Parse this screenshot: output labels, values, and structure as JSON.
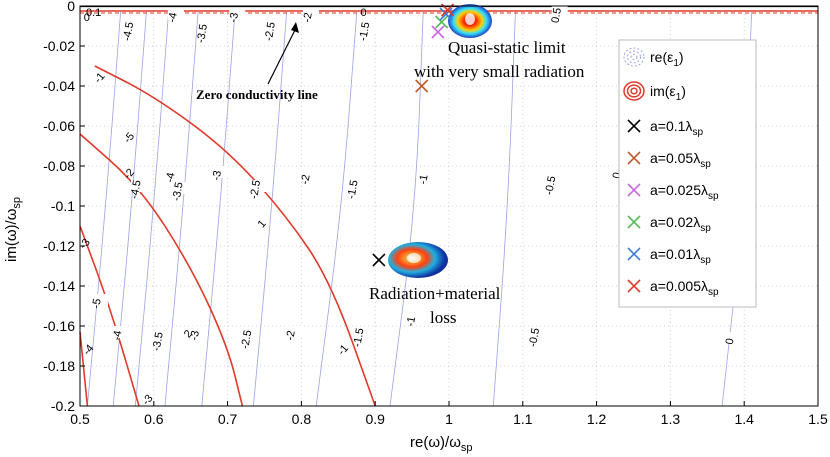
{
  "chart_data": {
    "type": "line",
    "xlabel": "re(ω)/ω",
    "xlabel_sub": "sp",
    "ylabel": "im(ω)/ω",
    "ylabel_sub": "sp",
    "xlim": [
      0.5,
      1.5
    ],
    "ylim": [
      -0.2,
      0
    ],
    "x_ticks": [
      "0.5",
      "0.6",
      "0.7",
      "0.8",
      "0.9",
      "1",
      "1.1",
      "1.2",
      "1.3",
      "1.4",
      "1.5"
    ],
    "y_ticks": [
      "0",
      "-0.02",
      "-0.04",
      "-0.06",
      "-0.08",
      "-0.1",
      "-0.12",
      "-0.14",
      "-0.16",
      "-0.18",
      "-0.2"
    ],
    "grid": true,
    "legend_position": "right",
    "contours_re": [
      {
        "level": "-4.5",
        "points": [
          [
            0.555,
            -0.003
          ],
          [
            0.535,
            -0.1
          ],
          [
            0.51,
            -0.2
          ]
        ]
      },
      {
        "level": "-4",
        "points": [
          [
            0.59,
            -0.003
          ],
          [
            0.57,
            -0.1
          ],
          [
            0.545,
            -0.2
          ]
        ]
      },
      {
        "level": "-3.5",
        "points": [
          [
            0.62,
            -0.003
          ],
          [
            0.6,
            -0.1
          ],
          [
            0.575,
            -0.2
          ]
        ]
      },
      {
        "level": "-3",
        "points": [
          [
            0.66,
            -0.003
          ],
          [
            0.64,
            -0.1
          ],
          [
            0.615,
            -0.2
          ]
        ]
      },
      {
        "level": "-2.5",
        "points": [
          [
            0.71,
            -0.003
          ],
          [
            0.69,
            -0.1
          ],
          [
            0.665,
            -0.2
          ]
        ]
      },
      {
        "level": "-2",
        "points": [
          [
            0.78,
            -0.003
          ],
          [
            0.76,
            -0.1
          ],
          [
            0.735,
            -0.2
          ]
        ]
      },
      {
        "level": "-1.5",
        "points": [
          [
            0.875,
            -0.003
          ],
          [
            0.855,
            -0.1
          ],
          [
            0.82,
            -0.2
          ]
        ]
      },
      {
        "level": "-1",
        "points": [
          [
            0.965,
            -0.003
          ],
          [
            0.955,
            -0.1
          ],
          [
            0.92,
            -0.2
          ]
        ]
      },
      {
        "level": "-0.5",
        "points": [
          [
            1.09,
            -0.003
          ],
          [
            1.08,
            -0.1
          ],
          [
            1.06,
            -0.2
          ]
        ]
      },
      {
        "level": "0",
        "points": [
          [
            1.41,
            -0.003
          ],
          [
            1.4,
            -0.1
          ],
          [
            1.37,
            -0.2
          ]
        ]
      }
    ],
    "contours_re_labels": [
      {
        "text": "-4.5",
        "x": 0.57,
        "y": -0.013
      },
      {
        "text": "-4",
        "x": 0.63,
        "y": -0.006
      },
      {
        "text": "-3.5",
        "x": 0.67,
        "y": -0.014
      },
      {
        "text": "-3",
        "x": 0.713,
        "y": -0.006
      },
      {
        "text": "-2.5",
        "x": 0.762,
        "y": -0.013
      },
      {
        "text": "-2",
        "x": 0.813,
        "y": -0.006
      },
      {
        "text": "-1.5",
        "x": 0.89,
        "y": -0.013
      },
      {
        "text": "0.5",
        "x": 1.15,
        "y": -0.005
      },
      {
        "text": "-4.5",
        "x": 0.58,
        "y": -0.092
      },
      {
        "text": "-4",
        "x": 0.627,
        "y": -0.086
      },
      {
        "text": "-3.5",
        "x": 0.637,
        "y": -0.093
      },
      {
        "text": "-3",
        "x": 0.69,
        "y": -0.085
      },
      {
        "text": "-2.5",
        "x": 0.742,
        "y": -0.092
      },
      {
        "text": "-2",
        "x": 0.81,
        "y": -0.087
      },
      {
        "text": "-1.5",
        "x": 0.874,
        "y": -0.092
      },
      {
        "text": "-1",
        "x": 0.97,
        "y": -0.087
      },
      {
        "text": "-0.5",
        "x": 1.142,
        "y": -0.09
      },
      {
        "text": "0",
        "x": 1.232,
        "y": -0.085
      },
      {
        "text": "-5",
        "x": 0.527,
        "y": -0.149
      },
      {
        "text": "-4",
        "x": 0.555,
        "y": -0.165
      },
      {
        "text": "-3.5",
        "x": 0.61,
        "y": -0.168
      },
      {
        "text": "-3",
        "x": 0.66,
        "y": -0.165
      },
      {
        "text": "-2.5",
        "x": 0.73,
        "y": -0.167
      },
      {
        "text": "-2",
        "x": 0.79,
        "y": -0.165
      },
      {
        "text": "-1.5",
        "x": 0.882,
        "y": -0.166
      },
      {
        "text": "-1",
        "x": 0.953,
        "y": -0.158
      },
      {
        "text": "-0.5",
        "x": 1.12,
        "y": -0.166
      },
      {
        "text": "0",
        "x": 1.385,
        "y": -0.168
      }
    ],
    "contours_im": [
      {
        "level": "-1",
        "points": [
          [
            0.52,
            -0.03
          ],
          [
            0.6,
            -0.045
          ],
          [
            0.7,
            -0.072
          ],
          [
            0.78,
            -0.105
          ],
          [
            0.84,
            -0.138
          ],
          [
            0.9,
            -0.2
          ]
        ]
      },
      {
        "level": "-2",
        "points": [
          [
            0.5,
            -0.064
          ],
          [
            0.58,
            -0.09
          ],
          [
            0.65,
            -0.13
          ],
          [
            0.7,
            -0.17
          ],
          [
            0.72,
            -0.2
          ]
        ]
      },
      {
        "level": "-3",
        "points": [
          [
            0.5,
            -0.11
          ],
          [
            0.54,
            -0.15
          ],
          [
            0.58,
            -0.2
          ]
        ]
      },
      {
        "level": "-4",
        "points": [
          [
            0.5,
            -0.163
          ],
          [
            0.51,
            -0.2
          ]
        ]
      }
    ],
    "contours_im_labels": [
      {
        "text": "-1",
        "x": 0.53,
        "y": -0.037
      },
      {
        "text": "-5",
        "x": 0.57,
        "y": -0.067
      },
      {
        "text": "-2",
        "x": 0.57,
        "y": -0.085
      },
      {
        "text": "1",
        "x": 0.75,
        "y": -0.11
      },
      {
        "text": "-3",
        "x": 0.51,
        "y": -0.12
      },
      {
        "text": "2",
        "x": 0.65,
        "y": -0.165
      },
      {
        "text": "-1",
        "x": 0.86,
        "y": -0.173
      },
      {
        "text": "-4",
        "x": 0.515,
        "y": -0.173
      },
      {
        "text": "-3",
        "x": 0.595,
        "y": -0.198
      }
    ],
    "zero_conductivity_line": {
      "y": -0.0003,
      "label": "0"
    },
    "top_im_contour": {
      "y": -0.0025,
      "label_left": "0.1",
      "label_mid": "0"
    },
    "series": [
      {
        "name": "a=0.1λ",
        "sub": "sp",
        "color": "#000000",
        "points": [
          [
            0.905,
            -0.127
          ]
        ]
      },
      {
        "name": "a=0.05λ",
        "sub": "sp",
        "color": "#c0592a",
        "points": [
          [
            0.963,
            -0.04
          ]
        ]
      },
      {
        "name": "a=0.025λ",
        "sub": "sp",
        "color": "#cc66dd",
        "points": [
          [
            0.985,
            -0.013
          ]
        ]
      },
      {
        "name": "a=0.02λ",
        "sub": "sp",
        "color": "#55bb55",
        "points": [
          [
            0.99,
            -0.008
          ]
        ]
      },
      {
        "name": "a=0.01λ",
        "sub": "sp",
        "color": "#3a7fd6",
        "points": [
          [
            0.996,
            -0.004
          ]
        ]
      },
      {
        "name": "a=0.005λ",
        "sub": "sp",
        "color": "#e03a2a",
        "points": [
          [
            0.998,
            -0.002
          ]
        ]
      }
    ],
    "legend_contours": [
      {
        "name": "re(ε",
        "sub": "1",
        "color": "#9aa2e8"
      },
      {
        "name": "im(ε",
        "sub": "1",
        "color": "#e03a2a"
      }
    ],
    "annotations": {
      "zero_conductivity": "Zero conductivity line",
      "quasi_static_1": "Quasi-static limit",
      "quasi_static_2": "with very small radiation",
      "radiation_1": "Radiation+material",
      "radiation_2": "loss"
    },
    "colors": {
      "re_contour": "#9aa2e8",
      "im_contour": "#e03a2a",
      "grid": "#d0d0d0"
    }
  }
}
